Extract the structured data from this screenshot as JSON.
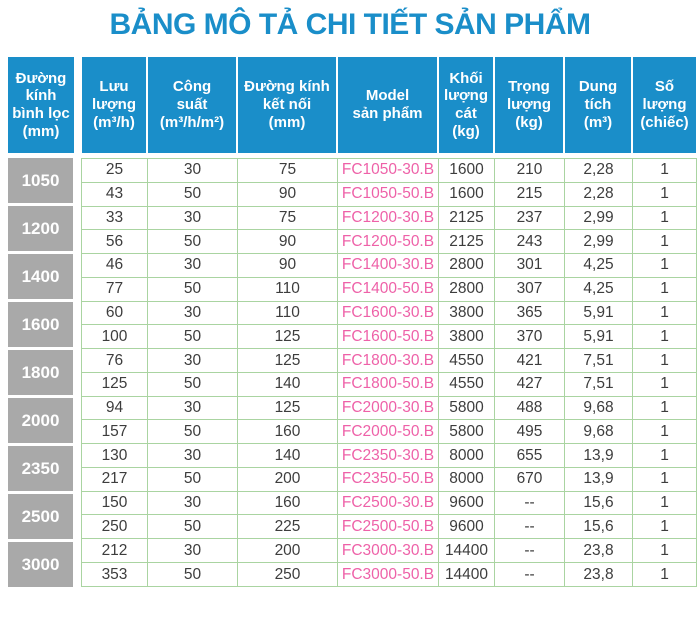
{
  "title": "BẢNG MÔ TẢ CHI TIẾT SẢN PHẨM",
  "colors": {
    "title_blue": "#1a8ec9",
    "header_blue": "#1a8ec9",
    "group_gray": "#a9a9a9",
    "grid_line_green": "#aad4a1",
    "model_pink": "#ee61a8",
    "cell_text": "#3d3d3d"
  },
  "table": {
    "headers": [
      {
        "label": "Đường\nkính\nbình lọc\n(mm)"
      },
      {
        "label": "Lưu\nlượng\n(m³/h)"
      },
      {
        "label": "Công\nsuất\n(m³/h/m²)"
      },
      {
        "label": "Đường kính\nkết nối\n(mm)"
      },
      {
        "label": "Model\nsản phẩm"
      },
      {
        "label": "Khối\nlượng\ncát\n(kg)"
      },
      {
        "label": "Trọng\nlượng\n(kg)"
      },
      {
        "label": "Dung\ntích\n(m³)"
      },
      {
        "label": "Số\nlượng\n(chiếc)"
      }
    ],
    "groups": [
      {
        "diameter": "1050",
        "rows": [
          [
            "25",
            "30",
            "75",
            "FC1050-30.B",
            "1600",
            "210",
            "2,28",
            "1"
          ],
          [
            "43",
            "50",
            "90",
            "FC1050-50.B",
            "1600",
            "215",
            "2,28",
            "1"
          ]
        ]
      },
      {
        "diameter": "1200",
        "rows": [
          [
            "33",
            "30",
            "75",
            "FC1200-30.B",
            "2125",
            "237",
            "2,99",
            "1"
          ],
          [
            "56",
            "50",
            "90",
            "FC1200-50.B",
            "2125",
            "243",
            "2,99",
            "1"
          ]
        ]
      },
      {
        "diameter": "1400",
        "rows": [
          [
            "46",
            "30",
            "90",
            "FC1400-30.B",
            "2800",
            "301",
            "4,25",
            "1"
          ],
          [
            "77",
            "50",
            "110",
            "FC1400-50.B",
            "2800",
            "307",
            "4,25",
            "1"
          ]
        ]
      },
      {
        "diameter": "1600",
        "rows": [
          [
            "60",
            "30",
            "110",
            "FC1600-30.B",
            "3800",
            "365",
            "5,91",
            "1"
          ],
          [
            "100",
            "50",
            "125",
            "FC1600-50.B",
            "3800",
            "370",
            "5,91",
            "1"
          ]
        ]
      },
      {
        "diameter": "1800",
        "rows": [
          [
            "76",
            "30",
            "125",
            "FC1800-30.B",
            "4550",
            "421",
            "7,51",
            "1"
          ],
          [
            "125",
            "50",
            "140",
            "FC1800-50.B",
            "4550",
            "427",
            "7,51",
            "1"
          ]
        ]
      },
      {
        "diameter": "2000",
        "rows": [
          [
            "94",
            "30",
            "125",
            "FC2000-30.B",
            "5800",
            "488",
            "9,68",
            "1"
          ],
          [
            "157",
            "50",
            "160",
            "FC2000-50.B",
            "5800",
            "495",
            "9,68",
            "1"
          ]
        ]
      },
      {
        "diameter": "2350",
        "rows": [
          [
            "130",
            "30",
            "140",
            "FC2350-30.B",
            "8000",
            "655",
            "13,9",
            "1"
          ],
          [
            "217",
            "50",
            "200",
            "FC2350-50.B",
            "8000",
            "670",
            "13,9",
            "1"
          ]
        ]
      },
      {
        "diameter": "2500",
        "rows": [
          [
            "150",
            "30",
            "160",
            "FC2500-30.B",
            "9600",
            "--",
            "15,6",
            "1"
          ],
          [
            "250",
            "50",
            "225",
            "FC2500-50.B",
            "9600",
            "--",
            "15,6",
            "1"
          ]
        ]
      },
      {
        "diameter": "3000",
        "rows": [
          [
            "212",
            "30",
            "200",
            "FC3000-30.B",
            "14400",
            "--",
            "23,8",
            "1"
          ],
          [
            "353",
            "50",
            "250",
            "FC3000-50.B",
            "14400",
            "--",
            "23,8",
            "1"
          ]
        ]
      }
    ]
  }
}
